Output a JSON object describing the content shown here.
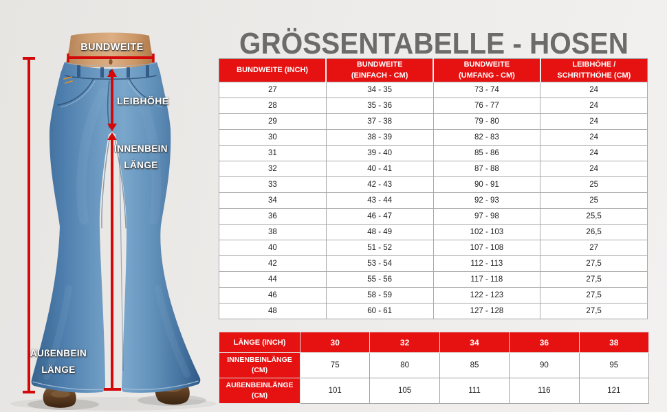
{
  "title": "GRÖSSENTABELLE - HOSEN",
  "colors": {
    "table_header_red": "#e61212",
    "measure_line_red": "#d40808",
    "title_gray": "#6b6b6b",
    "background_gray": "#edebe9",
    "denim_blue": "#5b8ab5"
  },
  "diagram": {
    "labels": {
      "waist": "BUNDWEITE",
      "rise": "LEIBHÖHE",
      "inseam": "INNENBEIN LÄNGE",
      "outseam": "AUßENBEIN LÄNGE"
    }
  },
  "size_table": {
    "headers": [
      {
        "line1": "BUNDWEITE (INCH)",
        "line2": ""
      },
      {
        "line1": "BUNDWEITE",
        "line2": "(EINFACH - CM)"
      },
      {
        "line1": "BUNDWEITE",
        "line2": "(UMFANG - CM)"
      },
      {
        "line1": "LEIBHÖHE /",
        "line2": "SCHRITTHÖHE (CM)"
      }
    ],
    "rows": [
      [
        "27",
        "34 - 35",
        "73 - 74",
        "24"
      ],
      [
        "28",
        "35 - 36",
        "76 - 77",
        "24"
      ],
      [
        "29",
        "37 - 38",
        "79 - 80",
        "24"
      ],
      [
        "30",
        "38 - 39",
        "82 - 83",
        "24"
      ],
      [
        "31",
        "39 - 40",
        "85 - 86",
        "24"
      ],
      [
        "32",
        "40 - 41",
        "87 - 88",
        "24"
      ],
      [
        "33",
        "42 - 43",
        "90 - 91",
        "25"
      ],
      [
        "34",
        "43 - 44",
        "92 - 93",
        "25"
      ],
      [
        "36",
        "46 - 47",
        "97 - 98",
        "25,5"
      ],
      [
        "38",
        "48 - 49",
        "102 - 103",
        "26,5"
      ],
      [
        "40",
        "51 - 52",
        "107 - 108",
        "27"
      ],
      [
        "42",
        "53 - 54",
        "112 - 113",
        "27,5"
      ],
      [
        "44",
        "55 - 56",
        "117 - 118",
        "27,5"
      ],
      [
        "46",
        "58 - 59",
        "122 - 123",
        "27,5"
      ],
      [
        "48",
        "60 - 61",
        "127 - 128",
        "27,5"
      ]
    ]
  },
  "length_table": {
    "headers": [
      "LÄNGE (INCH)",
      "30",
      "32",
      "34",
      "36",
      "38"
    ],
    "rows": [
      [
        "INNENBEINLÄNGE (CM)",
        "75",
        "80",
        "85",
        "90",
        "95"
      ],
      [
        "AUßENBEINLÄNGE (CM)",
        "101",
        "105",
        "111",
        "116",
        "121"
      ]
    ]
  }
}
